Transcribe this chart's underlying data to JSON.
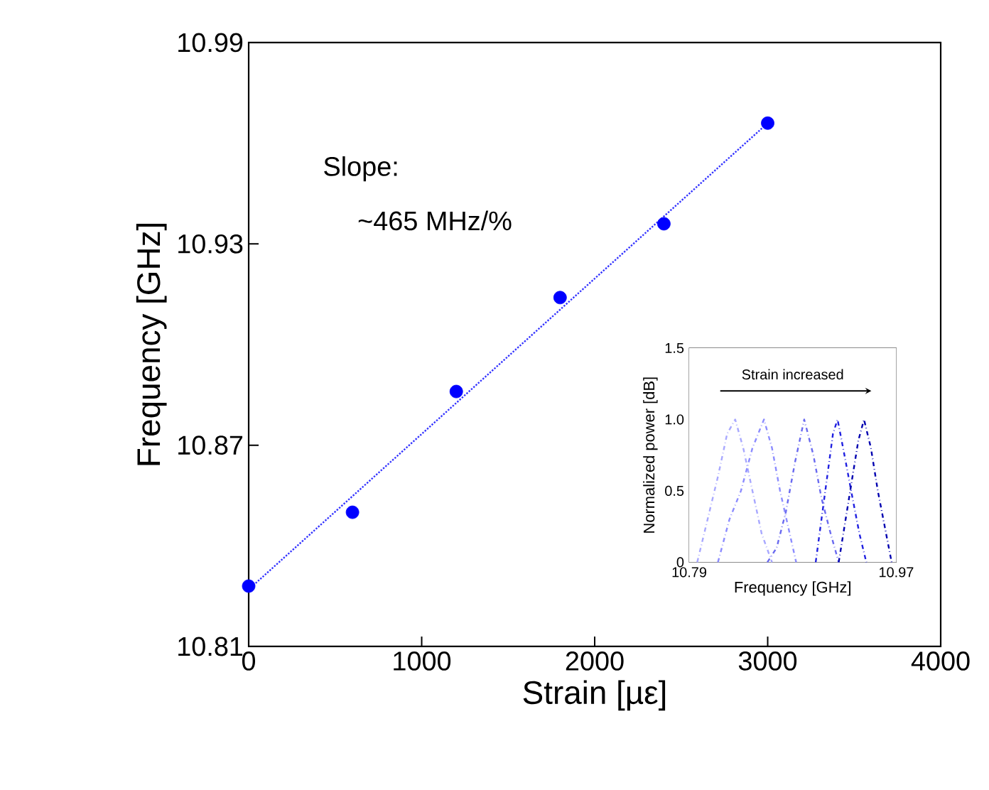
{
  "chart_data": [
    {
      "type": "scatter",
      "xlabel": "Strain [µε]",
      "ylabel": "Frequency [GHz]",
      "annotations": [
        "Slope:",
        "~465 MHz/%"
      ],
      "xlim": [
        0,
        4000
      ],
      "xticks": [
        0,
        1000,
        2000,
        3000,
        4000
      ],
      "ylim": [
        10.81,
        10.99
      ],
      "yticks": [
        10.81,
        10.87,
        10.93,
        10.99
      ],
      "series": [
        {
          "type": "scatter",
          "color": "#0000ff",
          "marker": "circle",
          "x": [
            0,
            600,
            1200,
            1800,
            2400,
            3000
          ],
          "values": [
            10.828,
            10.85,
            10.886,
            10.914,
            10.936,
            10.966
          ]
        },
        {
          "type": "line",
          "color": "#3333ff",
          "marker": "none",
          "line_style": "dotted",
          "x": [
            0,
            3000
          ],
          "values": [
            10.827,
            10.966
          ]
        }
      ]
    },
    {
      "type": "line",
      "xlabel": "Frequency [GHz]",
      "ylabel": "Normalized power [dB]",
      "annotations": [
        "Strain increased"
      ],
      "xlim": [
        10.79,
        10.97
      ],
      "xticks": [
        10.79,
        10.97
      ],
      "ylim": [
        0,
        1.5
      ],
      "yticks": [
        0,
        0.5,
        {
          "value": 1,
          "label": "1.0"
        },
        {
          "value": 1.5,
          "label": "1.5"
        }
      ],
      "line_style": "dashed",
      "marker": "none",
      "series": [
        {
          "color": "#a8a8ff",
          "x": [
            10.797,
            10.806,
            10.815,
            10.823,
            10.83,
            10.837,
            10.845,
            10.853,
            10.862
          ],
          "values": [
            0,
            0.3,
            0.6,
            0.9,
            1.0,
            0.8,
            0.5,
            0.2,
            0
          ]
        },
        {
          "color": "#8c8cff",
          "x": [
            10.815,
            10.825,
            10.835,
            10.845,
            10.855,
            10.862,
            10.869,
            10.876,
            10.883
          ],
          "values": [
            0,
            0.3,
            0.5,
            0.8,
            1.0,
            0.8,
            0.5,
            0.25,
            0
          ]
        },
        {
          "color": "#6a6af0",
          "x": [
            10.858,
            10.866,
            10.874,
            10.882,
            10.89,
            10.898,
            10.905,
            10.913,
            10.92
          ],
          "values": [
            0,
            0.1,
            0.35,
            0.7,
            1.0,
            0.75,
            0.45,
            0.2,
            0
          ]
        },
        {
          "color": "#2020e0",
          "x": [
            10.9,
            10.905,
            10.91,
            10.915,
            10.919,
            10.925,
            10.932,
            10.938,
            10.944
          ],
          "values": [
            0,
            0.3,
            0.6,
            0.9,
            1.0,
            0.75,
            0.45,
            0.2,
            0
          ]
        },
        {
          "color": "#0000b0",
          "x": [
            10.92,
            10.926,
            10.932,
            10.937,
            10.942,
            10.948,
            10.954,
            10.96,
            10.966
          ],
          "values": [
            0,
            0.3,
            0.6,
            0.85,
            1.0,
            0.8,
            0.5,
            0.25,
            0
          ]
        }
      ]
    }
  ]
}
